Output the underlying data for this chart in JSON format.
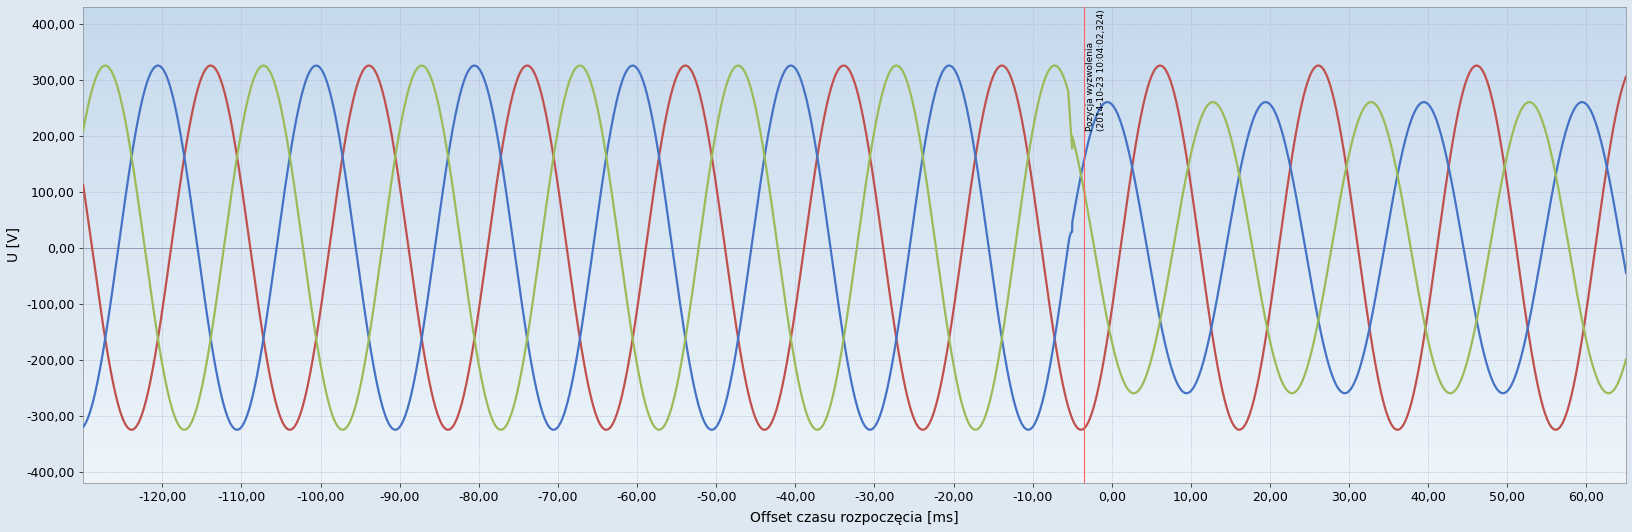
{
  "xlabel": "Offset czasu rozpoczęcia [ms]",
  "ylabel": "U [V]",
  "xlim": [
    -130,
    65
  ],
  "ylim": [
    -420,
    430
  ],
  "yticks": [
    -400,
    -300,
    -200,
    -100,
    0,
    100,
    200,
    300,
    400
  ],
  "xticks": [
    -120,
    -110,
    -100,
    -90,
    -80,
    -70,
    -60,
    -50,
    -40,
    -30,
    -20,
    -10,
    0,
    10,
    20,
    30,
    40,
    50,
    60
  ],
  "amplitude": 325.27,
  "frequency_hz": 50,
  "phase_blue_deg": 100,
  "phase_red_deg": -20,
  "phase_green_deg": 220,
  "color_blue": "#4472C4",
  "color_red": "#C0504D",
  "color_green": "#9BBB59",
  "trigger_x": -3.5,
  "trigger_label_line1": "Pozycja wyzwolenia",
  "trigger_label_line2": "(2014-10-23 10:04:02,324)",
  "bg_color_top": "#C8DFF0",
  "bg_color_bottom": "#F0F6FC",
  "grid_color": "#AAAACC",
  "grid_linestyle": ":",
  "line_width": 1.6,
  "post_trigger_amplitude_blue": 260,
  "post_trigger_amplitude_green": 260,
  "disturbance_start": -5.5,
  "disturbance_end": 0.0,
  "fig_bg_color": "#E8F0F8",
  "axes_bg_top": "#C5D9EC",
  "axes_bg_bottom": "#EEF4FA"
}
